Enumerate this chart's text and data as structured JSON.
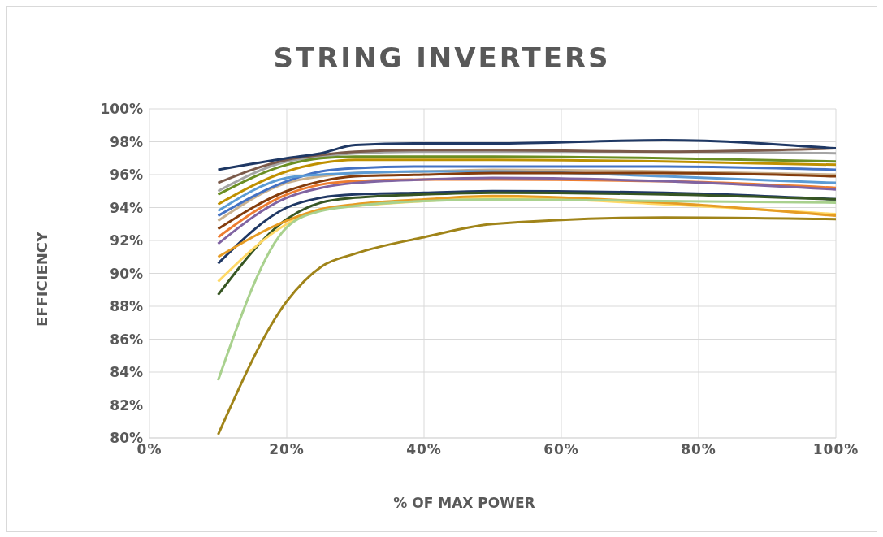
{
  "chart_data": {
    "type": "line",
    "title": "STRING INVERTERS",
    "xlabel": "% OF MAX POWER",
    "ylabel": "EFFICIENCY",
    "x": [
      10,
      20,
      25,
      30,
      40,
      50,
      75,
      100
    ],
    "xlim": [
      0,
      100
    ],
    "xticks": [
      {
        "value": 0,
        "label": "0%"
      },
      {
        "value": 20,
        "label": "20%"
      },
      {
        "value": 40,
        "label": "40%"
      },
      {
        "value": 60,
        "label": "60%"
      },
      {
        "value": 80,
        "label": "80%"
      },
      {
        "value": 100,
        "label": "100%"
      }
    ],
    "ylim": [
      80,
      100
    ],
    "yticks": [
      {
        "value": 80,
        "label": "80%"
      },
      {
        "value": 82,
        "label": "82%"
      },
      {
        "value": 84,
        "label": "84%"
      },
      {
        "value": 86,
        "label": "86%"
      },
      {
        "value": 88,
        "label": "88%"
      },
      {
        "value": 90,
        "label": "90%"
      },
      {
        "value": 92,
        "label": "92%"
      },
      {
        "value": 94,
        "label": "94%"
      },
      {
        "value": 96,
        "label": "96%"
      },
      {
        "value": 98,
        "label": "98%"
      },
      {
        "value": 100,
        "label": "100%"
      }
    ],
    "grid": true,
    "legend": false,
    "marker": "none",
    "line_style": "solid",
    "series": [
      {
        "color": "#a5a5a5",
        "values": [
          95.0,
          96.8,
          97.1,
          97.3,
          97.4,
          97.4,
          97.4,
          97.3
        ]
      },
      {
        "color": "#7b5a4a",
        "values": [
          95.5,
          96.9,
          97.2,
          97.4,
          97.5,
          97.5,
          97.4,
          97.6
        ]
      },
      {
        "color": "#6b8e23",
        "values": [
          94.8,
          96.6,
          97.0,
          97.1,
          97.1,
          97.1,
          97.0,
          96.8
        ]
      },
      {
        "color": "#bf9000",
        "values": [
          94.2,
          96.2,
          96.7,
          96.9,
          96.9,
          96.9,
          96.8,
          96.6
        ]
      },
      {
        "color": "#c9b18f",
        "values": [
          93.2,
          95.5,
          95.9,
          96.1,
          96.2,
          96.3,
          96.2,
          96.0
        ]
      },
      {
        "color": "#4472c4",
        "values": [
          93.5,
          95.6,
          96.2,
          96.4,
          96.5,
          96.5,
          96.5,
          96.3
        ]
      },
      {
        "color": "#5b9bd5",
        "values": [
          93.8,
          95.8,
          96.0,
          96.1,
          96.2,
          96.2,
          95.9,
          95.5
        ]
      },
      {
        "color": "#843c0c",
        "values": [
          92.7,
          95.0,
          95.6,
          95.9,
          96.0,
          96.1,
          96.1,
          95.9
        ]
      },
      {
        "color": "#ed7d31",
        "values": [
          92.2,
          94.8,
          95.4,
          95.6,
          95.7,
          95.7,
          95.6,
          95.2
        ]
      },
      {
        "color": "#8064a2",
        "values": [
          91.8,
          94.6,
          95.2,
          95.5,
          95.7,
          95.8,
          95.6,
          95.1
        ]
      },
      {
        "color": "#203864",
        "values": [
          90.6,
          94.0,
          94.6,
          94.8,
          94.9,
          95.0,
          94.9,
          94.5
        ]
      },
      {
        "color": "#375623",
        "values": [
          88.7,
          93.3,
          94.3,
          94.6,
          94.8,
          94.9,
          94.8,
          94.5
        ]
      },
      {
        "color": "#ffd966",
        "values": [
          89.5,
          93.0,
          93.9,
          94.1,
          94.4,
          94.6,
          94.2,
          93.6
        ]
      },
      {
        "color": "#e69c24",
        "values": [
          91.0,
          93.2,
          93.9,
          94.2,
          94.5,
          94.7,
          94.3,
          93.5
        ]
      },
      {
        "color": "#a9d18e",
        "values": [
          83.5,
          92.8,
          93.8,
          94.1,
          94.4,
          94.5,
          94.4,
          94.3
        ]
      },
      {
        "color": "#a08419",
        "values": [
          80.2,
          88.3,
          90.4,
          91.2,
          92.2,
          93.0,
          93.4,
          93.3
        ]
      },
      {
        "color": "#1f3864",
        "values": [
          96.3,
          97.0,
          97.3,
          97.8,
          97.9,
          97.9,
          98.1,
          97.6
        ]
      }
    ]
  }
}
